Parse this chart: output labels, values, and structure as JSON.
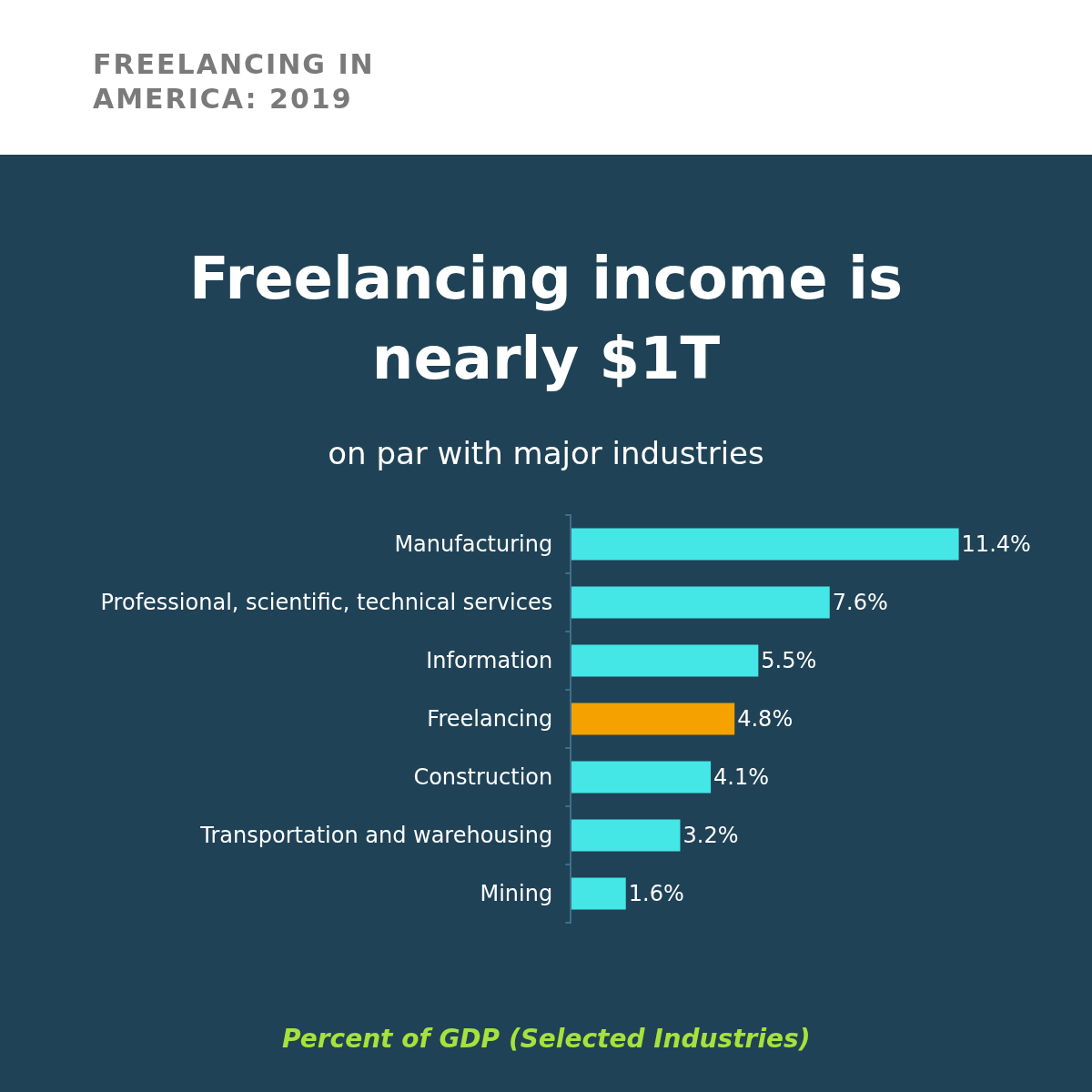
{
  "chart_data": {
    "type": "bar",
    "orientation": "horizontal",
    "title": "Freelancing income is nearly $1T",
    "subtitle": "on par with major industries",
    "xlabel": "Percent of GDP (Selected Industries)",
    "annotations": [
      "FREELANCING IN AMERICA: 2019"
    ],
    "categories": [
      "Manufacturing",
      "Professional, scientific, technical services",
      "Information",
      "Freelancing",
      "Construction",
      "Transportation and warehousing",
      "Mining"
    ],
    "values": [
      11.4,
      7.6,
      5.5,
      4.8,
      4.1,
      3.2,
      1.6
    ],
    "colors": [
      "#45e6e6",
      "#45e6e6",
      "#45e6e6",
      "#f5a100",
      "#45e6e6",
      "#45e6e6",
      "#45e6e6"
    ],
    "value_labels": [
      "11.4%",
      "7.6%",
      "5.5%",
      "4.8%",
      "4.1%",
      "3.2%",
      "1.6%"
    ]
  }
}
